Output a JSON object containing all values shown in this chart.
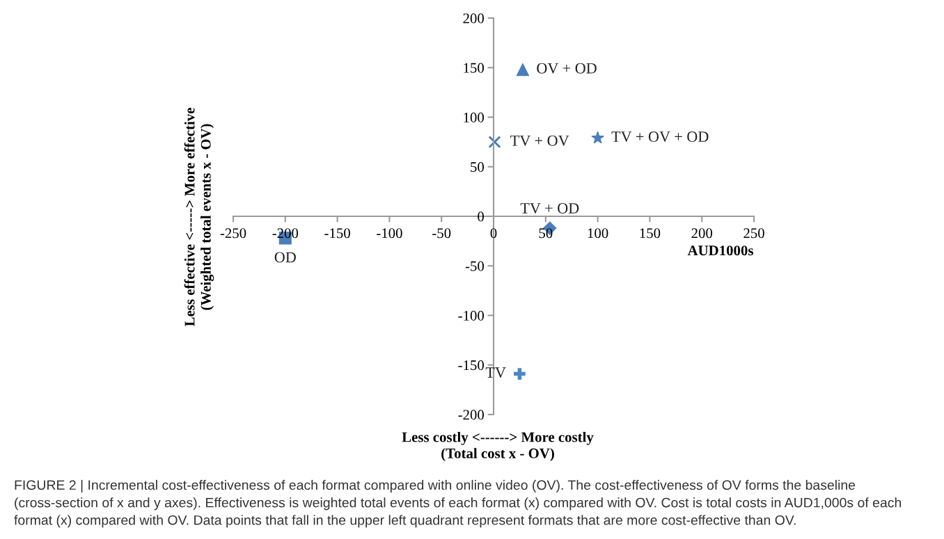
{
  "chart_data": {
    "type": "scatter",
    "xlabel": "Less costly <------> More costly\n(Total cost x - OV)",
    "ylabel": "Less effective <-----> More effective\n(Weighted total events x - OV)",
    "xlim": [
      -250,
      250
    ],
    "xticks": [
      -250,
      -200,
      -150,
      -100,
      -50,
      0,
      50,
      100,
      150,
      200,
      250
    ],
    "ylim": [
      -200,
      200
    ],
    "yticks": [
      -200,
      -150,
      -100,
      -50,
      0,
      50,
      100,
      150,
      200
    ],
    "grid": false,
    "legend": false,
    "series": [
      {
        "name": "OV + OD",
        "color": "#4a7ebb",
        "marker": "triangle",
        "x": [
          28
        ],
        "values": [
          148
        ]
      },
      {
        "name": "TV + OV",
        "color": "#4a7ebb",
        "marker": "cross",
        "x": [
          1
        ],
        "values": [
          75
        ]
      },
      {
        "name": "TV + OV + OD",
        "color": "#4a7ebb",
        "marker": "star",
        "x": [
          100
        ],
        "values": [
          79
        ]
      },
      {
        "name": "TV + OD",
        "color": "#4a7ebb",
        "marker": "diamond",
        "x": [
          54
        ],
        "values": [
          -12
        ]
      },
      {
        "name": "OD",
        "color": "#4a7ebb",
        "marker": "square",
        "x": [
          -200
        ],
        "values": [
          -22
        ]
      },
      {
        "name": "TV",
        "color": "#4a86c8",
        "marker": "plus",
        "x": [
          25
        ],
        "values": [
          -159
        ]
      }
    ],
    "annotations": [
      "AUD1000s",
      "FIGURE 2 | Incremental cost-effectiveness of each format compared with online video (OV). The cost-effectiveness of OV forms the baseline (cross-section of x and y axes). Effectiveness is weighted total events of each format (x) compared with OV. Cost is total costs in AUD1,000s of each format (x) compared with OV. Data points that fall in the upper left quadrant represent formats that are more cost-effective than OV."
    ]
  }
}
